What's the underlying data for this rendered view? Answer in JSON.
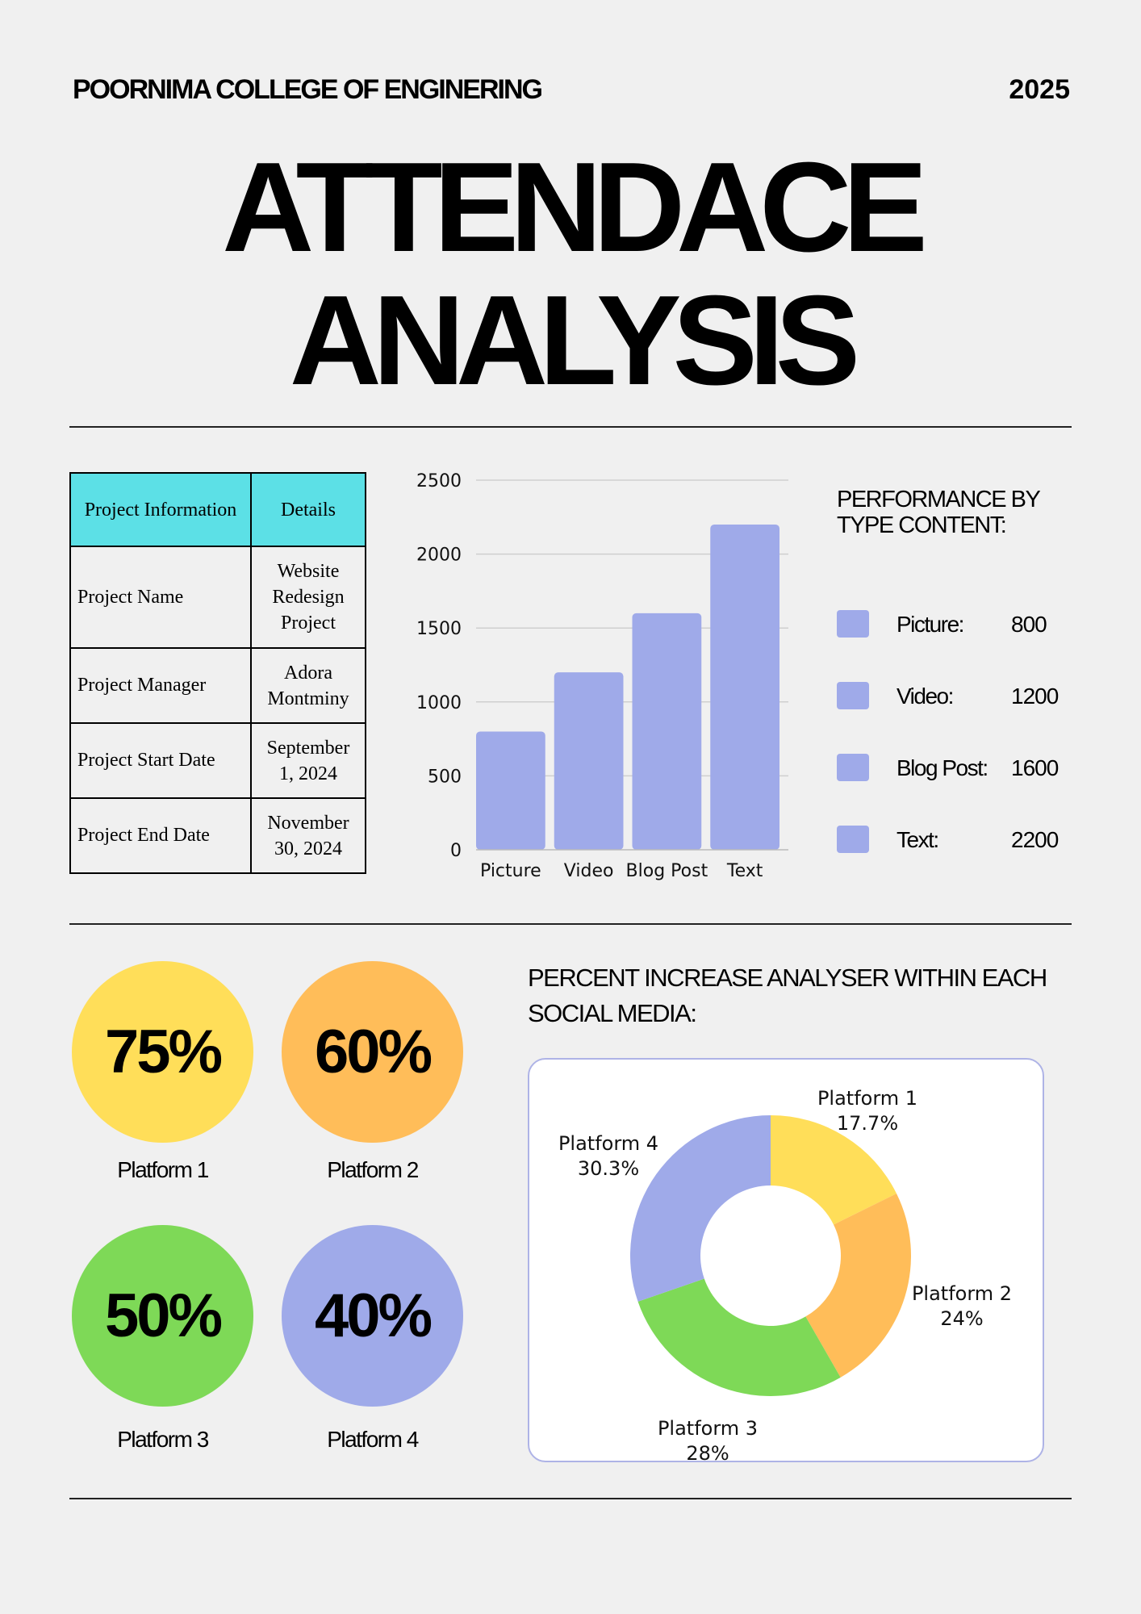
{
  "header": {
    "college": "POORNIMA COLLEGE OF ENGINERING",
    "year": "2025"
  },
  "title": {
    "line1": "ATTENDACE",
    "line2": "ANALYSIS"
  },
  "project_table": {
    "header": {
      "col1": "Project Information",
      "col2": "Details"
    },
    "rows": [
      {
        "key": "Project Name",
        "value": "Website Redesign Project"
      },
      {
        "key": "Project Manager",
        "value": "Adora Montminy"
      },
      {
        "key": "Project Start Date",
        "value": "September 1, 2024"
      },
      {
        "key": "Project End Date",
        "value": "November 30, 2024"
      }
    ]
  },
  "performance": {
    "title": "PERFORMANCE BY TYPE CONTENT:",
    "items": [
      {
        "name": "Picture:",
        "value": "800"
      },
      {
        "name": "Video:",
        "value": "1200"
      },
      {
        "name": "Blog Post:",
        "value": "1600"
      },
      {
        "name": "Text:",
        "value": "2200"
      }
    ]
  },
  "platform_circles": [
    {
      "percent": "75%",
      "label": "Platform 1",
      "color": "#ffde59"
    },
    {
      "percent": "60%",
      "label": "Platform 2",
      "color": "#ffbd59"
    },
    {
      "percent": "50%",
      "label": "Platform 3",
      "color": "#7ed957"
    },
    {
      "percent": "40%",
      "label": "Platform 4",
      "color": "#9faae9"
    }
  ],
  "pie_section": {
    "title": "PERCENT INCREASE ANALYSER WITHIN EACH SOCIAL MEDIA:"
  },
  "chart_data": [
    {
      "type": "bar",
      "categories": [
        "Picture",
        "Video",
        "Blog Post",
        "Text"
      ],
      "values": [
        800,
        1200,
        1600,
        2200
      ],
      "ylim": [
        0,
        2500
      ],
      "yticks": [
        0,
        500,
        1000,
        1500,
        2000,
        2500
      ],
      "grid": true,
      "color": "#9faae9"
    },
    {
      "type": "pie",
      "donut": true,
      "slices": [
        {
          "label": "Platform 1",
          "value": 17.7,
          "display": "17.7%",
          "color": "#ffde59"
        },
        {
          "label": "Platform 2",
          "value": 24,
          "display": "24%",
          "color": "#ffbd59"
        },
        {
          "label": "Platform 3",
          "value": 28,
          "display": "28%",
          "color": "#7ed957"
        },
        {
          "label": "Platform 4",
          "value": 30.3,
          "display": "30.3%",
          "color": "#9faae9"
        }
      ]
    }
  ]
}
